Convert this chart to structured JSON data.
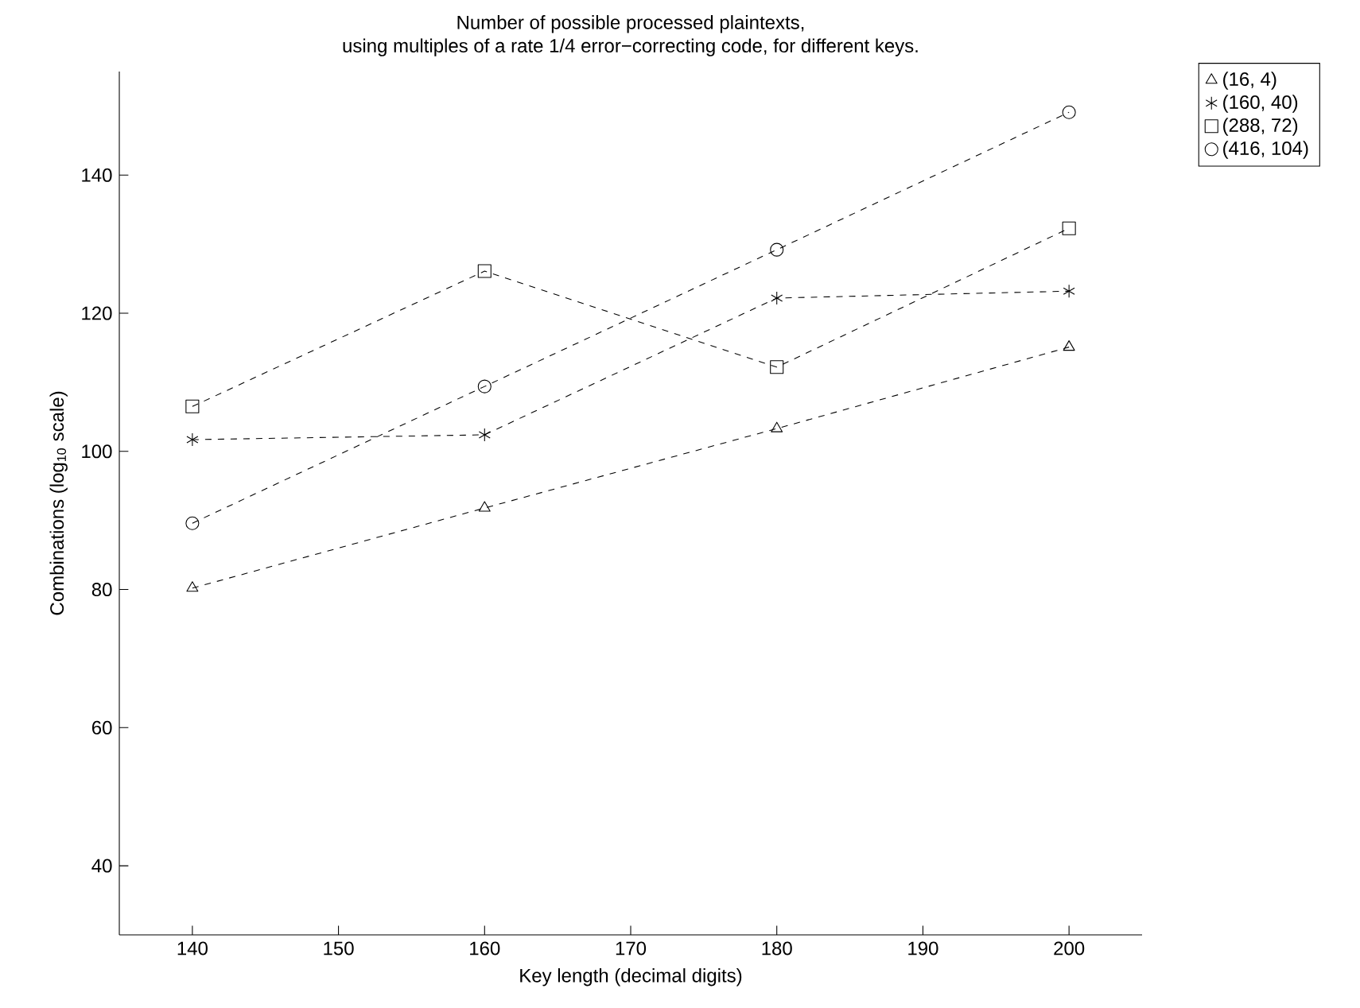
{
  "chart_data": {
    "type": "line",
    "title": "Number of possible processed plaintexts,",
    "subtitle": "using multiples of a rate 1/4 error−correcting code, for different keys.",
    "xlabel": "Key length (decimal digits)",
    "ylabel": "Combinations (log$_{10}$ scale)",
    "x": [
      140,
      160,
      180,
      200
    ],
    "series": [
      {
        "name": "(16, 4)",
        "color": "#000000",
        "marker": "triangle",
        "values": [
          80.2,
          91.8,
          103.3,
          115.1
        ]
      },
      {
        "name": "(160, 40)",
        "color": "#000000",
        "marker": "cross",
        "values": [
          101.7,
          102.4,
          122.2,
          123.2
        ]
      },
      {
        "name": "(288, 72)",
        "color": "#000000",
        "marker": "square",
        "values": [
          106.5,
          126.1,
          112.2,
          132.3
        ]
      },
      {
        "name": "(416, 104)",
        "color": "#000000",
        "marker": "circle",
        "values": [
          89.6,
          109.4,
          129.2,
          149.1
        ]
      }
    ],
    "xlim": [
      135,
      205
    ],
    "ylim": [
      30,
      155
    ],
    "xticks": [
      140,
      150,
      160,
      170,
      180,
      190,
      200
    ],
    "yticks": [
      40,
      60,
      80,
      100,
      120,
      140
    ],
    "grid": false,
    "legend": "top right",
    "line_style": "dashed"
  }
}
